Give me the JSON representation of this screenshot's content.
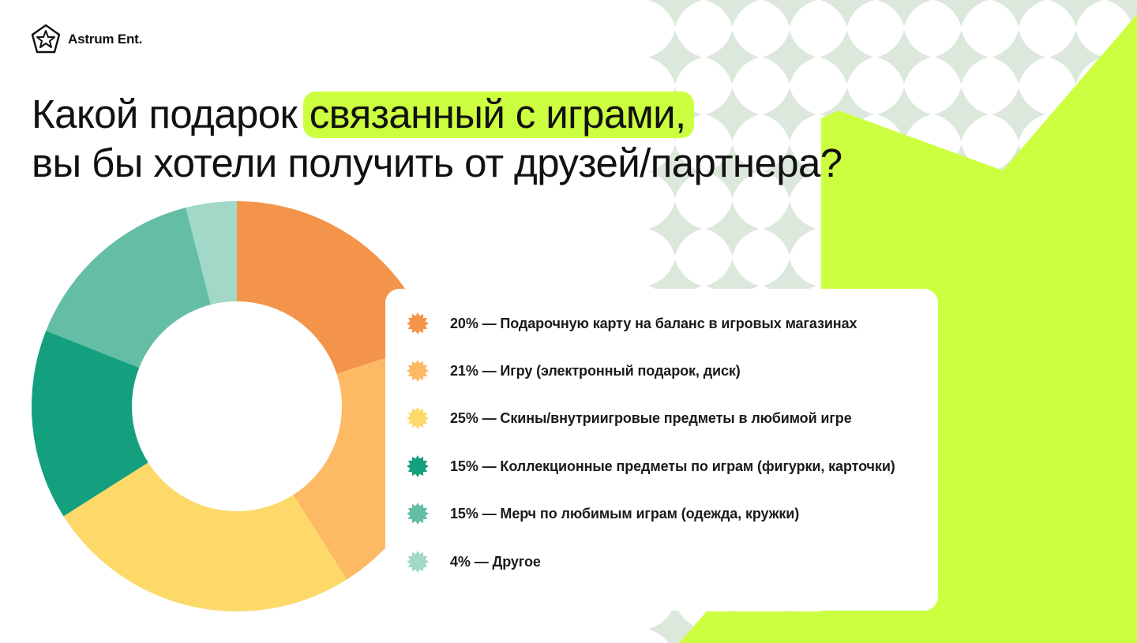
{
  "brand": {
    "name": "Astrum Ent.",
    "icon": "star-icon"
  },
  "title": {
    "prefix": "Какой подарок ",
    "highlight": "связанный с играми,",
    "line2": "вы бы хотели получить от друзей/партнера?"
  },
  "colors": {
    "accent": "#ccff3f",
    "pattern": "#dde8dd"
  },
  "legend": {
    "marker_icon": "burst-icon",
    "items": [
      {
        "text": "20% — Подарочную карту на баланс в игровых магазинах",
        "color": "#f4944a"
      },
      {
        "text": "21% — Игру (электронный подарок, диск)",
        "color": "#fdb963"
      },
      {
        "text": "25% — Скины/внутриигровые предметы в любимой игре",
        "color": "#fdd96a"
      },
      {
        "text": "15% — Коллекционные предметы по играм (фигурки, карточки)",
        "color": "#14a07e"
      },
      {
        "text": "15% — Мерч по любимым играм (одежда, кружки)",
        "color": "#64bea6"
      },
      {
        "text": "4% — Другое",
        "color": "#a1d8c7"
      }
    ]
  },
  "chart_data": {
    "type": "pie",
    "variant": "donut",
    "categories": [
      "Подарочную карту на баланс в игровых магазинах",
      "Игру (электронный подарок, диск)",
      "Скины/внутриигровые предметы в любимой игре",
      "Коллекционные предметы по играм (фигурки, карточки)",
      "Мерч по любимым играм (одежда, кружки)",
      "Другое"
    ],
    "values": [
      20,
      21,
      25,
      15,
      15,
      4
    ],
    "unit": "%",
    "colors": [
      "#f4944a",
      "#fdb963",
      "#fdd96a",
      "#14a07e",
      "#64bea6",
      "#a1d8c7"
    ],
    "start_angle": "top",
    "direction": "clockwise",
    "legend_position": "right"
  }
}
